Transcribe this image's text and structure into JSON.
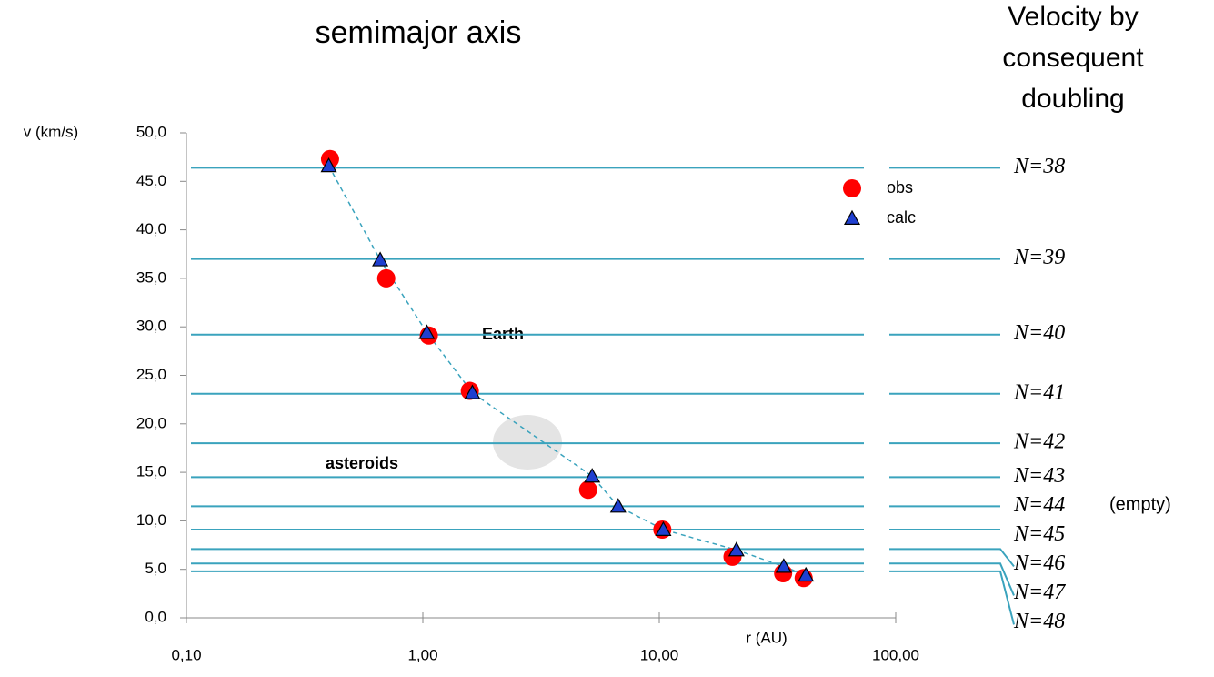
{
  "chart_data": {
    "type": "scatter",
    "title": "semimajor axis",
    "side_title": [
      "Velocity by",
      "consequent",
      "doubling"
    ],
    "x_label": "r (AU)",
    "y_label": "v (km/s)",
    "x_scale": "log",
    "xlim": [
      0.1,
      100
    ],
    "xticks": [
      {
        "value": 0.1,
        "label": "0,10"
      },
      {
        "value": 1,
        "label": "1,00"
      },
      {
        "value": 10,
        "label": "10,00"
      },
      {
        "value": 100,
        "label": "100,00"
      }
    ],
    "ylim": [
      0,
      50
    ],
    "yticks": [
      {
        "value": 0,
        "label": "0,0"
      },
      {
        "value": 5,
        "label": "5,0"
      },
      {
        "value": 10,
        "label": "10,0"
      },
      {
        "value": 15,
        "label": "15,0"
      },
      {
        "value": 20,
        "label": "20,0"
      },
      {
        "value": 25,
        "label": "25,0"
      },
      {
        "value": 30,
        "label": "30,0"
      },
      {
        "value": 35,
        "label": "35,0"
      },
      {
        "value": 40,
        "label": "40,0"
      },
      {
        "value": 45,
        "label": "45,0"
      },
      {
        "value": 50,
        "label": "50,0"
      }
    ],
    "series": [
      {
        "name": "obs",
        "color": "#ff0000",
        "marker": "circle",
        "x": [
          0.405,
          0.7,
          1.06,
          1.58,
          5.0,
          10.3,
          20.4,
          33.4,
          40.8
        ],
        "values": [
          47.3,
          35.0,
          29.1,
          23.4,
          13.2,
          9.1,
          6.3,
          4.6,
          4.1
        ]
      },
      {
        "name": "calc",
        "color": "#1f3fd0",
        "marker": "triangle",
        "x": [
          0.4,
          0.66,
          1.04,
          1.62,
          5.2,
          6.7,
          10.4,
          21.2,
          33.6,
          41.7
        ],
        "values": [
          46.6,
          36.9,
          29.4,
          23.2,
          14.6,
          11.5,
          9.1,
          7.0,
          5.3,
          4.4
        ]
      }
    ],
    "level_color": "#3aa3bd",
    "levels": [
      {
        "label": "N=38",
        "value": 46.4
      },
      {
        "label": "N=39",
        "value": 37.0
      },
      {
        "label": "N=40",
        "value": 29.2
      },
      {
        "label": "N=41",
        "value": 23.1
      },
      {
        "label": "N=42",
        "value": 18.0
      },
      {
        "label": "N=43",
        "value": 14.5
      },
      {
        "label": "N=44",
        "value": 11.5
      },
      {
        "label": "N=45",
        "value": 9.1
      },
      {
        "label": "N=46",
        "value": 7.1
      },
      {
        "label": "N=47",
        "value": 5.6
      },
      {
        "label": "N=48",
        "value": 4.8
      }
    ],
    "annotations": {
      "earth": "Earth",
      "asteroids": "asteroids",
      "empty": "(empty)"
    }
  }
}
